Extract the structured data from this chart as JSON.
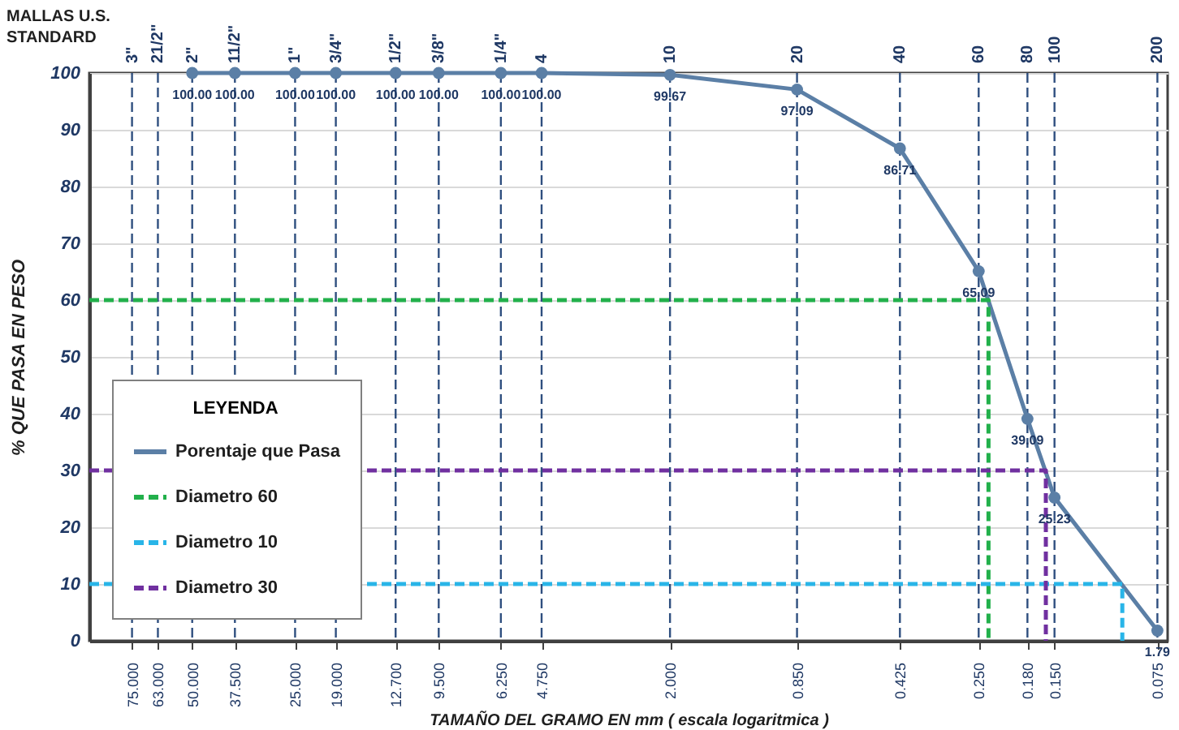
{
  "chart_data": {
    "type": "line",
    "xlabel": "TAMAÑO DEL GRAMO EN mm ( escala logaritmica )",
    "ylabel": "% QUE PASA EN PESO",
    "legend_title": "LEYENDA",
    "annotations": [
      "MALLAS U.S. STANDARD",
      {
        "text": "3\"",
        "x": 75,
        "y": 100
      },
      {
        "text": "21/2\"",
        "x": 63,
        "y": 100
      },
      {
        "text": "2\"",
        "x": 50,
        "y": 100
      },
      {
        "text": "11/2\"",
        "x": 37.5,
        "y": 100
      },
      {
        "text": "1\"",
        "x": 25,
        "y": 100
      },
      {
        "text": "3/4\"",
        "x": 19,
        "y": 100
      },
      {
        "text": "1/2\"",
        "x": 12.7,
        "y": 100
      },
      {
        "text": "3/8\"",
        "x": 9.5,
        "y": 100
      },
      {
        "text": "1/4\"",
        "x": 6.25,
        "y": 100
      },
      {
        "text": "4",
        "x": 4.75,
        "y": 100
      },
      {
        "text": "10",
        "x": 2,
        "y": 100
      },
      {
        "text": "20",
        "x": 0.85,
        "y": 100
      },
      {
        "text": "40",
        "x": 0.425,
        "y": 100
      },
      {
        "text": "60",
        "x": 0.25,
        "y": 100
      },
      {
        "text": "80",
        "x": 0.18,
        "y": 100
      },
      {
        "text": "100",
        "x": 0.15,
        "y": 100
      },
      {
        "text": "200",
        "x": 0.075,
        "y": 100
      }
    ],
    "log": "x",
    "xlim": [
      100,
      0.07
    ],
    "ylim": [
      0,
      100
    ],
    "yticks": [
      0,
      10,
      20,
      30,
      40,
      50,
      60,
      70,
      80,
      90,
      100
    ],
    "xticks": [
      {
        "value": 75,
        "label": "75.000"
      },
      {
        "value": 63,
        "label": "63.000"
      },
      {
        "value": 50,
        "label": "50.000"
      },
      {
        "value": 37.5,
        "label": "37.500"
      },
      {
        "value": 25,
        "label": "25.000"
      },
      {
        "value": 19,
        "label": "19.000"
      },
      {
        "value": 12.7,
        "label": "12.700"
      },
      {
        "value": 9.5,
        "label": "9.500"
      },
      {
        "value": 6.25,
        "label": "6.250"
      },
      {
        "value": 4.75,
        "label": "4.750"
      },
      {
        "value": 2,
        "label": "2.000"
      },
      {
        "value": 0.85,
        "label": "0.850"
      },
      {
        "value": 0.425,
        "label": "0.425"
      },
      {
        "value": 0.25,
        "label": "0.250"
      },
      {
        "value": 0.18,
        "label": "0.180"
      },
      {
        "value": 0.15,
        "label": "0.150"
      },
      {
        "value": 0.075,
        "label": "0.075"
      }
    ],
    "ref_lines": [
      {
        "axis": "x",
        "value": 75,
        "color": "#2f4f7f",
        "line_style": "dashed"
      },
      {
        "axis": "x",
        "value": 63,
        "color": "#2f4f7f",
        "line_style": "dashed"
      },
      {
        "axis": "x",
        "value": 50,
        "color": "#2f4f7f",
        "line_style": "dashed"
      },
      {
        "axis": "x",
        "value": 37.5,
        "color": "#2f4f7f",
        "line_style": "dashed"
      },
      {
        "axis": "x",
        "value": 25,
        "color": "#2f4f7f",
        "line_style": "dashed"
      },
      {
        "axis": "x",
        "value": 19,
        "color": "#2f4f7f",
        "line_style": "dashed"
      },
      {
        "axis": "x",
        "value": 12.7,
        "color": "#2f4f7f",
        "line_style": "dashed"
      },
      {
        "axis": "x",
        "value": 9.5,
        "color": "#2f4f7f",
        "line_style": "dashed"
      },
      {
        "axis": "x",
        "value": 6.25,
        "color": "#2f4f7f",
        "line_style": "dashed"
      },
      {
        "axis": "x",
        "value": 4.75,
        "color": "#2f4f7f",
        "line_style": "dashed"
      },
      {
        "axis": "x",
        "value": 2,
        "color": "#2f4f7f",
        "line_style": "dashed"
      },
      {
        "axis": "x",
        "value": 0.85,
        "color": "#2f4f7f",
        "line_style": "dashed"
      },
      {
        "axis": "x",
        "value": 0.425,
        "color": "#2f4f7f",
        "line_style": "dashed"
      },
      {
        "axis": "x",
        "value": 0.25,
        "color": "#2f4f7f",
        "line_style": "dashed"
      },
      {
        "axis": "x",
        "value": 0.18,
        "color": "#2f4f7f",
        "line_style": "dashed"
      },
      {
        "axis": "x",
        "value": 0.15,
        "color": "#2f4f7f",
        "line_style": "dashed"
      },
      {
        "axis": "x",
        "value": 0.075,
        "color": "#2f4f7f",
        "line_style": "dashed"
      }
    ],
    "grid": "y",
    "legend": "bottom left",
    "marker": "circle",
    "series": [
      {
        "name": "Porentaje que Pasa",
        "color": "#5b7fa6",
        "line_style": "solid",
        "x": [
          50,
          37.5,
          25,
          19,
          12.7,
          9.5,
          6.25,
          4.75,
          2,
          0.85,
          0.425,
          0.25,
          0.18,
          0.15,
          0.075
        ],
        "values": [
          100,
          100,
          100,
          100,
          100,
          100,
          100,
          100,
          99.67,
          97.09,
          86.71,
          65.09,
          39.09,
          25.23,
          1.79
        ],
        "value_labels": [
          "100.00",
          "100.00",
          "100.00",
          "100.00",
          "100.00",
          "100.00",
          "100.00",
          "100.00",
          "99.67",
          "97.09",
          "86.71",
          "65.09",
          "39.09",
          "25.23",
          "1.79"
        ]
      },
      {
        "name": "Diametro 60",
        "color": "#22b04b",
        "line_style": "dashed",
        "marker": "none",
        "x": [
          100,
          0.234,
          0.234
        ],
        "values": [
          60,
          60,
          0
        ]
      },
      {
        "name": "Diametro 10",
        "color": "#29b5e8",
        "line_style": "dashed",
        "marker": "none",
        "x": [
          100,
          0.095,
          0.095
        ],
        "values": [
          10,
          10,
          0
        ]
      },
      {
        "name": "Diametro 30",
        "color": "#7030a0",
        "line_style": "dashed",
        "marker": "none",
        "x": [
          100,
          0.159,
          0.159
        ],
        "values": [
          30,
          30,
          0
        ]
      }
    ]
  }
}
